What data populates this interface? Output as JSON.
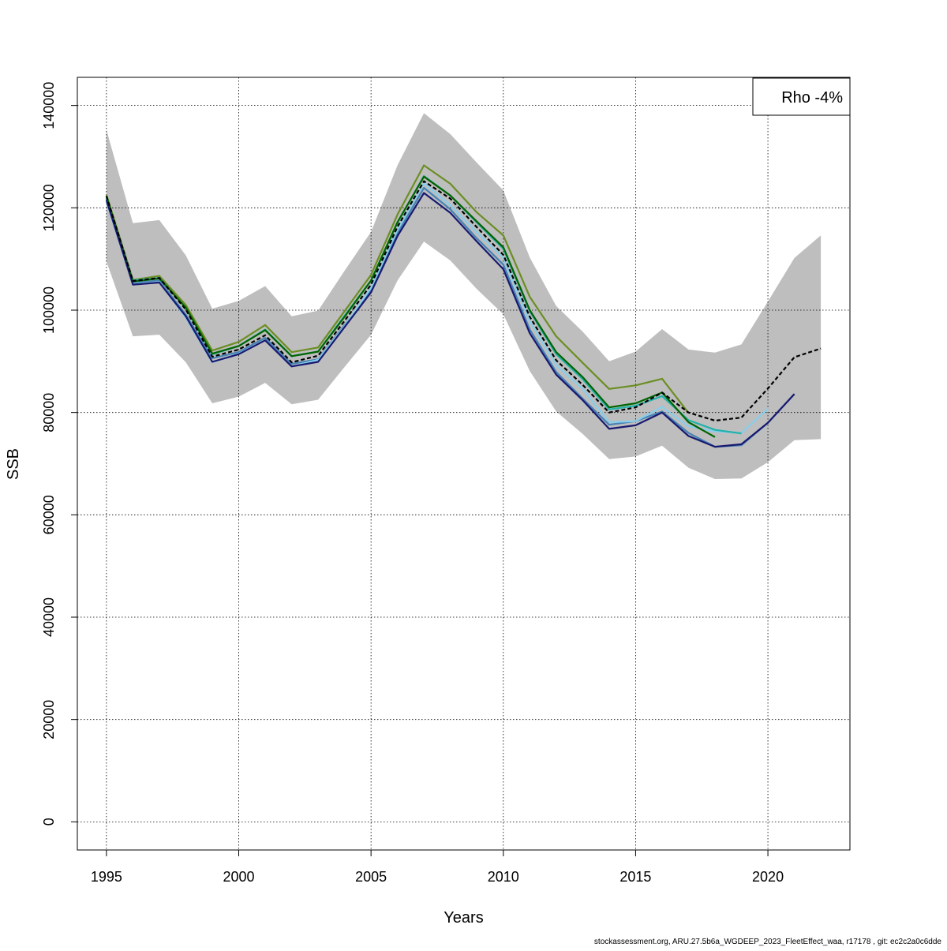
{
  "chart_data": {
    "type": "line",
    "xlabel": "Years",
    "ylabel": "SSB",
    "xlim": [
      1993.9,
      2023.1
    ],
    "ylim": [
      -5500,
      145500
    ],
    "x_ticks": [
      1995,
      2000,
      2005,
      2010,
      2015,
      2020
    ],
    "y_ticks": [
      0,
      20000,
      40000,
      60000,
      80000,
      100000,
      120000,
      140000
    ],
    "grid": true,
    "legend": {
      "position": "top-right",
      "text": "Rho -4%"
    },
    "band": {
      "color": "#bebebe",
      "x": [
        1995,
        1996,
        1997,
        1998,
        1999,
        2000,
        2001,
        2002,
        2003,
        2004,
        2005,
        2006,
        2007,
        2008,
        2009,
        2010,
        2011,
        2012,
        2013,
        2014,
        2015,
        2016,
        2017,
        2018,
        2019,
        2020,
        2021,
        2022
      ],
      "upper": [
        135200,
        117000,
        117600,
        110700,
        100300,
        101800,
        104700,
        98800,
        99900,
        107700,
        115300,
        128300,
        138500,
        134400,
        128800,
        123400,
        110300,
        100800,
        95800,
        90000,
        91900,
        96300,
        92300,
        91700,
        93300,
        101700,
        110200,
        114600
      ],
      "lower": [
        109500,
        94900,
        95200,
        89800,
        81800,
        83100,
        85800,
        81600,
        82500,
        88900,
        95200,
        105800,
        113400,
        109700,
        104100,
        99200,
        88100,
        80200,
        75800,
        70900,
        71400,
        73500,
        69200,
        67000,
        67100,
        70300,
        74600,
        74800
      ]
    },
    "series": [
      {
        "color": "#6b8e23",
        "x": [
          1995,
          1996,
          1997,
          1998,
          1999,
          2000,
          2001,
          2002,
          2003,
          2004,
          2005,
          2006,
          2007,
          2008,
          2009,
          2010,
          2011,
          2012,
          2013,
          2014,
          2015,
          2016,
          2017
        ],
        "values": [
          122500,
          105900,
          106700,
          101000,
          92100,
          93800,
          97100,
          91800,
          92700,
          99800,
          106900,
          118700,
          128300,
          124700,
          119100,
          114600,
          102600,
          94900,
          89700,
          84600,
          85300,
          86600,
          79900
        ]
      },
      {
        "color": "#4682b4",
        "x": [
          1995,
          1996,
          1997,
          1998,
          1999,
          2000,
          2001,
          2002,
          2003,
          2004,
          2005,
          2006,
          2007,
          2008,
          2009,
          2010,
          2011,
          2012,
          2013,
          2014,
          2015,
          2016,
          2017,
          2018,
          2019,
          2020,
          2021
        ],
        "values": [
          121800,
          105300,
          105800,
          99100,
          90600,
          91800,
          94600,
          89500,
          90400,
          97100,
          103800,
          115000,
          123900,
          119700,
          114000,
          108900,
          96200,
          87900,
          82700,
          77600,
          78300,
          80200,
          76000,
          73300,
          73600,
          78000,
          83600
        ]
      },
      {
        "color": "#87ceeb",
        "x": [
          1995,
          1996,
          1997,
          1998,
          1999,
          2000,
          2001,
          2002,
          2003,
          2004,
          2005,
          2006,
          2007,
          2008,
          2009,
          2010,
          2011,
          2012,
          2013,
          2014,
          2015,
          2016,
          2017,
          2018,
          2019,
          2020
        ],
        "values": [
          121200,
          105100,
          105500,
          98500,
          89800,
          91500,
          94100,
          89000,
          90300,
          96900,
          104400,
          115700,
          124800,
          120500,
          115200,
          110200,
          97800,
          89300,
          84600,
          78100,
          78300,
          81100,
          77300,
          76300,
          76000,
          80700
        ]
      },
      {
        "color": "#20b2aa",
        "x": [
          1995,
          1996,
          1997,
          1998,
          1999,
          2000,
          2001,
          2002,
          2003,
          2004,
          2005,
          2006,
          2007,
          2008,
          2009,
          2010,
          2011,
          2012,
          2013,
          2014,
          2015,
          2016,
          2017,
          2018,
          2019
        ],
        "values": [
          122000,
          105800,
          106300,
          100400,
          91400,
          93000,
          96200,
          91000,
          91900,
          98900,
          105800,
          117100,
          126200,
          122400,
          117100,
          112000,
          99800,
          91400,
          86500,
          80600,
          81300,
          83200,
          78500,
          76600,
          75900
        ]
      },
      {
        "color": "#006400",
        "x": [
          1995,
          1996,
          1997,
          1998,
          1999,
          2000,
          2001,
          2002,
          2003,
          2004,
          2005,
          2006,
          2007,
          2008,
          2009,
          2010,
          2011,
          2012,
          2013,
          2014,
          2015,
          2016,
          2017,
          2018
        ],
        "values": [
          122300,
          105600,
          106200,
          100500,
          91500,
          93000,
          96100,
          91000,
          91900,
          98700,
          105800,
          117200,
          126100,
          122400,
          117300,
          112300,
          100000,
          91800,
          86900,
          81000,
          81800,
          83900,
          78100,
          75200
        ]
      },
      {
        "color": "#191970",
        "x": [
          1995,
          1996,
          1997,
          1998,
          1999,
          2000,
          2001,
          2002,
          2003,
          2004,
          2005,
          2006,
          2007,
          2008,
          2009,
          2010,
          2011,
          2012,
          2013,
          2014,
          2015,
          2016,
          2017,
          2018,
          2019,
          2020,
          2021
        ],
        "values": [
          121500,
          105000,
          105400,
          98800,
          89900,
          91400,
          94100,
          89000,
          89900,
          96700,
          103500,
          114500,
          122900,
          119000,
          113400,
          108000,
          95500,
          87400,
          82400,
          76800,
          77500,
          80000,
          75400,
          73300,
          73800,
          78000,
          83600
        ]
      },
      {
        "color": "#000000",
        "dashed": true,
        "x": [
          1995,
          1996,
          1997,
          1998,
          1999,
          2000,
          2001,
          2002,
          2003,
          2004,
          2005,
          2006,
          2007,
          2008,
          2009,
          2010,
          2011,
          2012,
          2013,
          2014,
          2015,
          2016,
          2017,
          2018,
          2019,
          2020,
          2021,
          2022
        ],
        "values": [
          122300,
          105700,
          106300,
          100100,
          90900,
          92300,
          95100,
          89800,
          91100,
          97900,
          105000,
          116300,
          125200,
          121800,
          116200,
          110800,
          98700,
          90200,
          85400,
          80000,
          81000,
          83900,
          80000,
          78400,
          79000,
          84700,
          90800,
          92500
        ]
      }
    ]
  },
  "footer": "stockassessment.org, ARU.27.5b6a_WGDEEP_2023_FleetEffect_waa, r17178 , git: ec2c2a0c6dde"
}
